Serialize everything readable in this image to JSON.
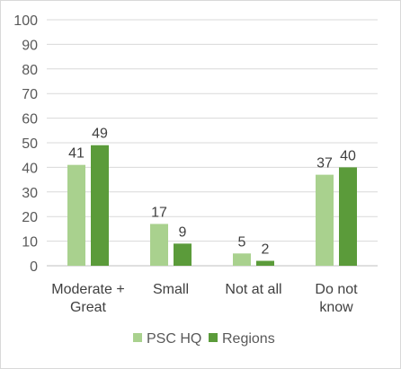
{
  "chart_data": {
    "type": "bar",
    "categories": [
      [
        "Moderate +",
        "Great"
      ],
      [
        "Small"
      ],
      [
        "Not at all"
      ],
      [
        "Do not",
        "know"
      ]
    ],
    "series": [
      {
        "name": "PSC HQ",
        "values": [
          41,
          17,
          5,
          37
        ],
        "color": "#a9d18e"
      },
      {
        "name": "Regions",
        "values": [
          49,
          9,
          2,
          40
        ],
        "color": "#5b9b3a"
      }
    ],
    "ylim": [
      0,
      100
    ],
    "yticks": [
      0,
      10,
      20,
      30,
      40,
      50,
      60,
      70,
      80,
      90,
      100
    ],
    "grid": true,
    "legend": "bottom",
    "title": "",
    "xlabel": "",
    "ylabel": ""
  }
}
